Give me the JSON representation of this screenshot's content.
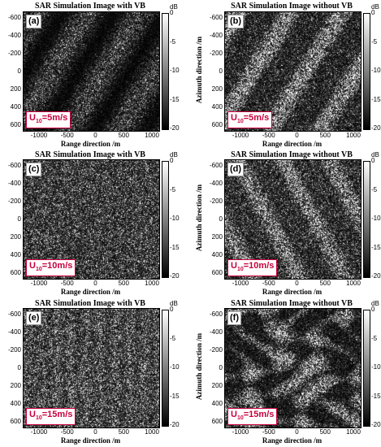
{
  "y_axis_label": "Azimuth direction /m",
  "x_axis_label": "Range direction /m",
  "y_ticks": [
    "-600",
    "-400",
    "-200",
    "0",
    "200",
    "400",
    "600"
  ],
  "x_ticks": [
    "-1000",
    "-500",
    "0",
    "500",
    "1000"
  ],
  "colorbar_unit": "dB",
  "colorbar_ticks": [
    "0",
    "-5",
    "-10",
    "-15",
    "-20"
  ],
  "panels": [
    {
      "id": "a",
      "label": "(a)",
      "title": "SAR Simulation Image with VB",
      "wind_u": "U",
      "wind_sub": "10",
      "wind_value": "=5m/s",
      "texture": "vb-low"
    },
    {
      "id": "b",
      "label": "(b)",
      "title": "SAR Simulation Image without VB",
      "wind_u": "U",
      "wind_sub": "10",
      "wind_value": "=5m/s",
      "texture": "novb-low"
    },
    {
      "id": "c",
      "label": "(c)",
      "title": "SAR Simulation Image with VB",
      "wind_u": "U",
      "wind_sub": "10",
      "wind_value": "=10m/s",
      "texture": "vb-mid"
    },
    {
      "id": "d",
      "label": "(d)",
      "title": "SAR Simulation Image without VB",
      "wind_u": "U",
      "wind_sub": "10",
      "wind_value": "=10m/s",
      "texture": "novb-mid"
    },
    {
      "id": "e",
      "label": "(e)",
      "title": "SAR Simulation Image with VB",
      "wind_u": "U",
      "wind_sub": "10",
      "wind_value": "=15m/s",
      "texture": "vb-high"
    },
    {
      "id": "f",
      "label": "(f)",
      "title": "SAR Simulation Image without VB",
      "wind_u": "U",
      "wind_sub": "10",
      "wind_value": "=15m/s",
      "texture": "novb-high"
    }
  ]
}
